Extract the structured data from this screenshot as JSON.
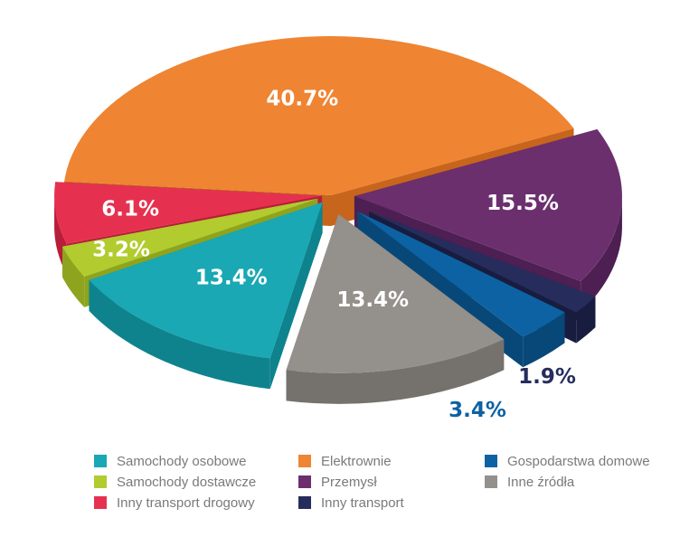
{
  "chart_data": {
    "type": "pie",
    "title": "",
    "series": [
      {
        "key": "elektrownie",
        "name": "Elektrownie",
        "value": 40.7,
        "label": "40.7%",
        "color": "#EF8432",
        "side": "#C8651C"
      },
      {
        "key": "przemysl",
        "name": "Przemysł",
        "value": 15.5,
        "label": "15.5%",
        "color": "#6B2F6E",
        "side": "#4E1F52"
      },
      {
        "key": "inny_transport",
        "name": "Inny transport",
        "value": 1.9,
        "label": "1.9%",
        "color": "#262D5C",
        "side": "#181D40"
      },
      {
        "key": "gospodarstwa",
        "name": "Gospodarstwa domowe",
        "value": 3.4,
        "label": "3.4%",
        "color": "#0C62A3",
        "side": "#084878"
      },
      {
        "key": "inne_zrodla",
        "name": "Inne źródła",
        "value": 13.4,
        "label": "13.4%",
        "color": "#94908C",
        "side": "#75716D"
      },
      {
        "key": "samochody_osobowe",
        "name": "Samochody osobowe",
        "value": 13.4,
        "label": "13.4%",
        "color": "#19A8B4",
        "side": "#0E838D"
      },
      {
        "key": "samochody_dostawcze",
        "name": "Samochody dostawcze",
        "value": 3.2,
        "label": "3.2%",
        "color": "#B2CB2E",
        "side": "#8EA41E"
      },
      {
        "key": "inny_transport_drogowy",
        "name": "Inny transport drogowy",
        "value": 6.1,
        "label": "6.1%",
        "color": "#E5314F",
        "side": "#B81E39"
      }
    ],
    "legend": {
      "placement": "bottom",
      "columns": [
        [
          "samochody_osobowe",
          "samochody_dostawcze",
          "inny_transport_drogowy"
        ],
        [
          "elektrownie",
          "przemysl",
          "inny_transport"
        ],
        [
          "gospodarstwa",
          "inne_zrodla"
        ]
      ]
    }
  }
}
